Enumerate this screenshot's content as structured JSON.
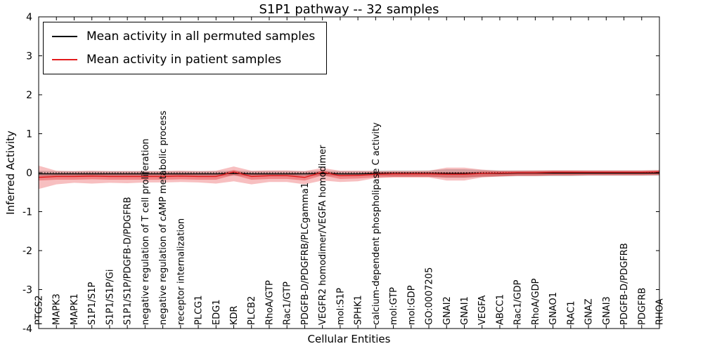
{
  "chart_data": {
    "type": "line",
    "title": "S1P1 pathway -- 32 samples",
    "xlabel": "Cellular Entities",
    "ylabel": "Inferred Activity",
    "ylim": [
      -4,
      4
    ],
    "yticks": [
      -4,
      -3,
      -2,
      -1,
      0,
      1,
      2,
      3,
      4
    ],
    "grid": false,
    "zero_line": true,
    "legend_position": "upper left",
    "categories": [
      "PTGS2",
      "MAPK3",
      "MAPK1",
      "S1P1/S1P",
      "S1P1/S1P/Gi",
      "S1P1/S1P/PDGFB-D/PDGFRB",
      "negative regulation of T cell proliferation",
      "negative regulation of cAMP metabolic process",
      "receptor internalization",
      "PLCG1",
      "EDG1",
      "KDR",
      "PLCB2",
      "RhoA/GTP",
      "Rac1/GTP",
      "PDGFB-D/PDGFRB/PLCgamma1",
      "VEGFR2 homodimer/VEGFA homodimer",
      "mol:S1P",
      "SPHK1",
      "calcium-dependent phospholipase C activity",
      "mol:GTP",
      "mol:GDP",
      "GO:0007205",
      "GNAI2",
      "GNAI1",
      "VEGFA",
      "ABCC1",
      "Rac1/GDP",
      "RhoA/GDP",
      "GNAO1",
      "RAC1",
      "GNAZ",
      "GNAI3",
      "PDGFB-D/PDGFRB",
      "PDGFRB",
      "RHOA"
    ],
    "series": [
      {
        "name": "Mean activity in all permuted samples",
        "color": "#000000",
        "band_color": "#999999",
        "values": [
          -0.03,
          -0.03,
          -0.03,
          -0.03,
          -0.03,
          -0.03,
          -0.03,
          -0.03,
          -0.03,
          -0.03,
          -0.03,
          -0.02,
          -0.03,
          -0.03,
          -0.03,
          -0.03,
          -0.02,
          -0.03,
          -0.03,
          -0.02,
          -0.02,
          -0.02,
          -0.02,
          -0.02,
          -0.02,
          -0.02,
          -0.02,
          -0.01,
          -0.01,
          -0.01,
          -0.01,
          -0.01,
          -0.01,
          -0.01,
          -0.01,
          -0.01
        ],
        "bands": [
          {
            "alpha": 0.45,
            "upper": [
              0.05,
              0.04,
              0.04,
              0.04,
              0.04,
              0.04,
              0.04,
              0.04,
              0.04,
              0.04,
              0.04,
              0.05,
              0.04,
              0.04,
              0.04,
              0.04,
              0.05,
              0.04,
              0.04,
              0.05,
              0.06,
              0.06,
              0.06,
              0.09,
              0.09,
              0.07,
              0.06,
              0.06,
              0.06,
              0.06,
              0.06,
              0.06,
              0.06,
              0.06,
              0.06,
              0.06
            ],
            "lower": [
              -0.1,
              -0.09,
              -0.09,
              -0.09,
              -0.09,
              -0.09,
              -0.09,
              -0.09,
              -0.09,
              -0.09,
              -0.09,
              -0.08,
              -0.09,
              -0.09,
              -0.09,
              -0.09,
              -0.08,
              -0.09,
              -0.09,
              -0.08,
              -0.1,
              -0.1,
              -0.1,
              -0.13,
              -0.13,
              -0.11,
              -0.1,
              -0.09,
              -0.09,
              -0.09,
              -0.09,
              -0.08,
              -0.08,
              -0.08,
              -0.08,
              -0.08
            ]
          }
        ]
      },
      {
        "name": "Mean activity in patient samples",
        "color": "#e31a1c",
        "band_color": "#e31a1c",
        "values": [
          -0.12,
          -0.1,
          -0.1,
          -0.09,
          -0.1,
          -0.1,
          -0.1,
          -0.1,
          -0.09,
          -0.1,
          -0.1,
          0.02,
          -0.1,
          -0.08,
          -0.08,
          -0.12,
          0.01,
          -0.08,
          -0.07,
          -0.04,
          -0.03,
          -0.03,
          -0.03,
          -0.04,
          -0.04,
          -0.02,
          -0.01,
          0.0,
          0.0,
          0.01,
          0.01,
          0.01,
          0.01,
          0.01,
          0.01,
          0.02
        ],
        "bands": [
          {
            "alpha": 0.28,
            "upper": [
              0.18,
              0.05,
              0.04,
              0.05,
              0.04,
              0.04,
              0.04,
              0.04,
              0.05,
              0.04,
              0.05,
              0.16,
              0.05,
              0.06,
              0.06,
              0.04,
              0.12,
              0.05,
              0.05,
              0.04,
              0.04,
              0.04,
              0.05,
              0.13,
              0.13,
              0.08,
              0.05,
              0.04,
              0.05,
              0.05,
              0.05,
              0.04,
              0.04,
              0.04,
              0.04,
              0.05
            ],
            "lower": [
              -0.42,
              -0.3,
              -0.26,
              -0.28,
              -0.26,
              -0.27,
              -0.25,
              -0.25,
              -0.24,
              -0.25,
              -0.28,
              -0.22,
              -0.3,
              -0.24,
              -0.24,
              -0.3,
              -0.2,
              -0.24,
              -0.22,
              -0.14,
              -0.12,
              -0.12,
              -0.12,
              -0.2,
              -0.2,
              -0.12,
              -0.1,
              -0.08,
              -0.08,
              -0.07,
              -0.07,
              -0.06,
              -0.06,
              -0.06,
              -0.06,
              -0.06
            ]
          },
          {
            "alpha": 0.35,
            "upper": [
              -0.07,
              -0.05,
              -0.05,
              -0.04,
              -0.05,
              -0.05,
              -0.05,
              -0.05,
              -0.04,
              -0.05,
              -0.05,
              0.07,
              -0.05,
              -0.03,
              -0.03,
              -0.07,
              0.06,
              -0.03,
              -0.02,
              0.01,
              0.02,
              0.02,
              0.02,
              0.01,
              0.01,
              0.03,
              0.04,
              0.05,
              0.05,
              0.06,
              0.06,
              0.06,
              0.06,
              0.06,
              0.06,
              0.07
            ],
            "lower": [
              -0.2,
              -0.18,
              -0.18,
              -0.17,
              -0.18,
              -0.18,
              -0.18,
              -0.18,
              -0.17,
              -0.18,
              -0.18,
              -0.06,
              -0.18,
              -0.16,
              -0.16,
              -0.2,
              -0.07,
              -0.16,
              -0.15,
              -0.12,
              -0.11,
              -0.11,
              -0.11,
              -0.12,
              -0.12,
              -0.1,
              -0.09,
              -0.08,
              -0.08,
              -0.07,
              -0.07,
              -0.07,
              -0.07,
              -0.07,
              -0.07,
              -0.06
            ]
          }
        ]
      }
    ]
  }
}
